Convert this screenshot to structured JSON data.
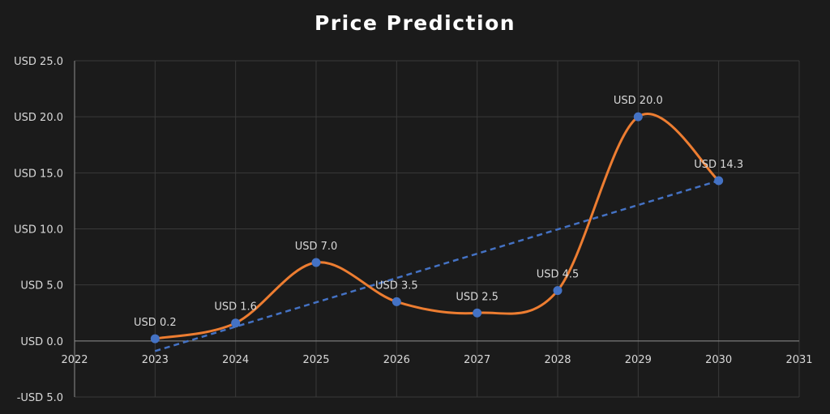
{
  "chart_data": {
    "type": "scatter",
    "title": "Price Prediction",
    "xlabel": "",
    "ylabel": "",
    "xlim": [
      2022,
      2031
    ],
    "ylim": [
      -5,
      25
    ],
    "x_ticks": [
      2022,
      2023,
      2024,
      2025,
      2026,
      2027,
      2028,
      2029,
      2030,
      2031
    ],
    "x_tick_labels": [
      "2022",
      "2023",
      "2024",
      "2025",
      "2026",
      "2027",
      "2028",
      "2029",
      "2030",
      "2031"
    ],
    "y_ticks": [
      -5,
      0,
      5,
      10,
      15,
      20,
      25
    ],
    "y_tick_labels": [
      "-USD 5.0",
      "USD 0.0",
      "USD 5.0",
      "USD 10.0",
      "USD 15.0",
      "USD 20.0",
      "USD 25.0"
    ],
    "grid": true,
    "legend": "none",
    "series": [
      {
        "x": [
          2023,
          2024,
          2025,
          2026,
          2027,
          2028,
          2029,
          2030
        ],
        "y": [
          0.2,
          1.6,
          7.0,
          3.5,
          2.5,
          4.5,
          20.0,
          14.3
        ],
        "labels": [
          "USD 0.2",
          "USD 1.6",
          "USD 7.0",
          "USD 3.5",
          "USD 2.5",
          "USD 4.5",
          "USD 20.0",
          "USD 14.3"
        ],
        "line": "smooth",
        "line_color": "#ed7d31",
        "marker_color": "#4472c4"
      }
    ],
    "trendline": {
      "type": "linear",
      "color": "#4472c4",
      "style": "dashed",
      "x": [
        2023,
        2030
      ],
      "y": [
        -0.9,
        14.3
      ]
    }
  }
}
